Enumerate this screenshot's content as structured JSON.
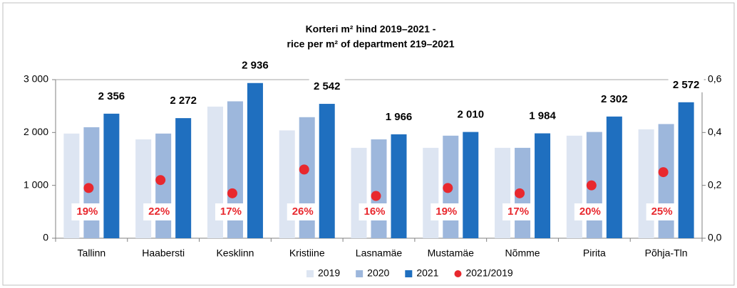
{
  "chart_data": {
    "type": "bar",
    "title": "Korteri m² hind 2019–2021  -",
    "subtitle": "rice per m² of department 219–2021",
    "categories": [
      "Tallinn",
      "Haabersti",
      "Kesklinn",
      "Kristiine",
      "Lasnamäe",
      "Mustamäe",
      "Nõmme",
      "Pirita",
      "Põhja-Tln"
    ],
    "series": [
      {
        "name": "2019",
        "color": "#dde5f2",
        "values": [
          1980,
          1870,
          2490,
          2040,
          1710,
          1710,
          1710,
          1940,
          2060
        ]
      },
      {
        "name": "2020",
        "color": "#9db7dc",
        "values": [
          2100,
          1980,
          2590,
          2290,
          1870,
          1940,
          1710,
          2010,
          2160
        ]
      },
      {
        "name": "2021",
        "color": "#1f6fbf",
        "values": [
          2356,
          2272,
          2936,
          2542,
          1966,
          2010,
          1984,
          2302,
          2572
        ],
        "value_labels": [
          "2 356",
          "2 272",
          "2 936",
          "2 542",
          "1 966",
          "2 010",
          "1 984",
          "2 302",
          "2 572"
        ]
      },
      {
        "name": "2021/2019",
        "color": "#e8282e",
        "type": "scatter",
        "axis": "y2",
        "values": [
          0.19,
          0.22,
          0.17,
          0.26,
          0.16,
          0.19,
          0.17,
          0.2,
          0.25
        ],
        "value_labels": [
          "19%",
          "22%",
          "17%",
          "26%",
          "16%",
          "19%",
          "17%",
          "20%",
          "25%"
        ]
      }
    ],
    "ylim": [
      0,
      3000
    ],
    "yticks": [
      0,
      {
        "value": 1000,
        "label": "1 000"
      },
      {
        "value": 2000,
        "label": "2 000"
      },
      {
        "value": 3000,
        "label": "3 000"
      }
    ],
    "y2lim": [
      0,
      0.6
    ],
    "y2ticks": [
      {
        "value": 0,
        "label": "0,0"
      },
      {
        "value": 0.2,
        "label": "0,2"
      },
      {
        "value": 0.4,
        "label": "0,4"
      },
      {
        "value": 0.6,
        "label": "0,6"
      }
    ],
    "legend": "bottom"
  }
}
